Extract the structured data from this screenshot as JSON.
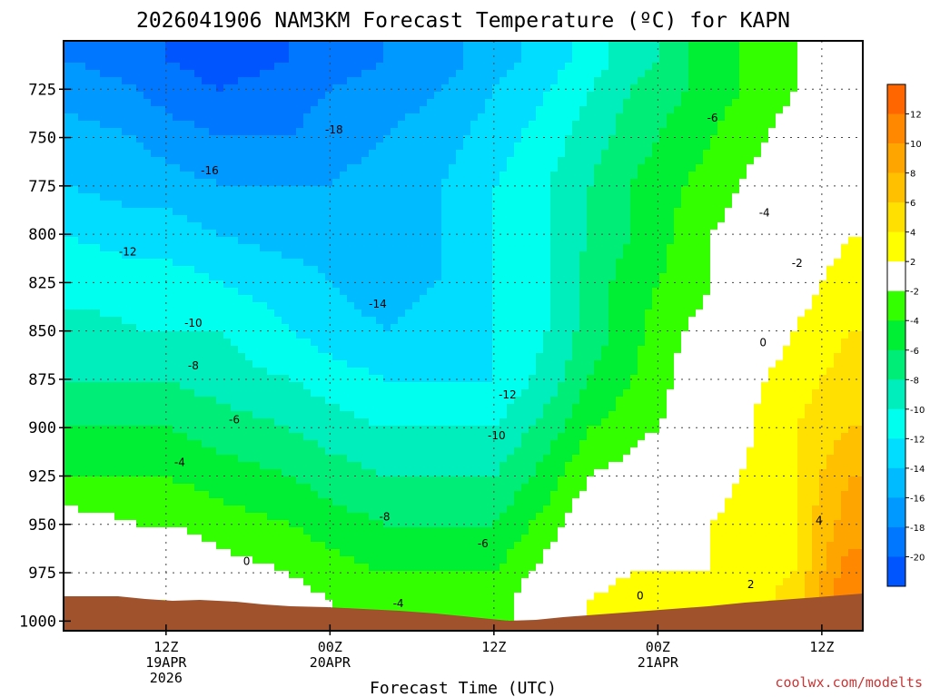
{
  "chart_data": {
    "type": "heatmap",
    "title": "2026041906 NAM3KM Forecast Temperature (ºC) for KAPN",
    "xlabel": "Forecast Time (UTC)",
    "ylabel": "",
    "credit": "coolwx.com/modelts",
    "x_range_hours": [
      -7.5,
      51
    ],
    "y_range_hpa": [
      700,
      1005
    ],
    "y_scale": "linear-inverted",
    "grid": true,
    "x_ticks": [
      {
        "hour": 0,
        "lines": [
          "12Z",
          "19APR",
          "2026"
        ]
      },
      {
        "hour": 12,
        "lines": [
          "00Z",
          "20APR"
        ]
      },
      {
        "hour": 24,
        "lines": [
          "12Z"
        ]
      },
      {
        "hour": 36,
        "lines": [
          "00Z",
          "21APR"
        ]
      },
      {
        "hour": 48,
        "lines": [
          "12Z"
        ]
      }
    ],
    "y_ticks": [
      725,
      750,
      775,
      800,
      825,
      850,
      875,
      900,
      925,
      950,
      975,
      1000
    ],
    "colorbar": {
      "position": "right",
      "labels": [
        "12",
        "10",
        "8",
        "6",
        "4",
        "2",
        "-2",
        "-4",
        "-6",
        "-8",
        "-10",
        "-12",
        "-14",
        "-16",
        "-18",
        "-20"
      ],
      "colors": [
        "#ff6600",
        "#ff8800",
        "#ffa500",
        "#ffc000",
        "#ffe000",
        "#ffff00",
        "#ffffff",
        "#33ff00",
        "#00ee33",
        "#00ee77",
        "#00eebb",
        "#00ffee",
        "#00ddff",
        "#00bbff",
        "#0099ff",
        "#0077ff",
        "#0055ff"
      ]
    },
    "temperature_profiles": {
      "hours": [
        -7,
        -2,
        0,
        4,
        9,
        12,
        16,
        20,
        24,
        28,
        31,
        34,
        36,
        38,
        40,
        42,
        44,
        46,
        48,
        50
      ],
      "pressures": [
        710,
        725,
        750,
        775,
        800,
        825,
        850,
        875,
        900,
        925,
        950,
        975,
        990
      ],
      "values_c": [
        [
          -18,
          -19,
          -20,
          -21,
          -20,
          -19,
          -18,
          -17,
          -15,
          -13,
          -11,
          -9,
          -8,
          -6,
          -5,
          -4,
          -3,
          -2,
          -1,
          -1
        ],
        [
          -17,
          -18,
          -19,
          -20,
          -19,
          -18,
          -17,
          -16,
          -14,
          -12,
          -10,
          -8,
          -7,
          -6,
          -5,
          -4,
          -3,
          -2,
          -1,
          -1
        ],
        [
          -15,
          -16,
          -17,
          -18,
          -18,
          -17,
          -16,
          -15,
          -13,
          -11,
          -9,
          -7,
          -6,
          -5,
          -4,
          -3,
          -2,
          -1,
          -1,
          0
        ],
        [
          -14,
          -15,
          -15,
          -16,
          -16,
          -16,
          -15,
          -14,
          -12,
          -10,
          -8,
          -6,
          -5,
          -4,
          -3,
          -2,
          -1,
          0,
          0,
          1
        ],
        [
          -12,
          -13,
          -13,
          -14,
          -15,
          -15,
          -15,
          -14,
          -12,
          -10,
          -8,
          -6,
          -5,
          -3,
          -2,
          -1,
          0,
          1,
          1,
          2
        ],
        [
          -11,
          -11,
          -11,
          -12,
          -13,
          -14,
          -15,
          -14,
          -12,
          -10,
          -7,
          -5,
          -4,
          -3,
          -2,
          -1,
          0,
          1,
          2,
          3
        ],
        [
          -9,
          -10,
          -10,
          -10,
          -12,
          -13,
          -14,
          -13,
          -12,
          -10,
          -7,
          -5,
          -3,
          -2,
          -1,
          0,
          1,
          2,
          3,
          4
        ],
        [
          -8,
          -8,
          -8,
          -9,
          -10,
          -11,
          -12,
          -12,
          -12,
          -9,
          -6,
          -4,
          -3,
          -1,
          0,
          1,
          2,
          3,
          4,
          5
        ],
        [
          -6,
          -6,
          -6,
          -7,
          -8,
          -9,
          -10,
          -10,
          -10,
          -7,
          -4,
          -3,
          -2,
          -1,
          0,
          1,
          3,
          4,
          5,
          6
        ],
        [
          -4,
          -4,
          -4,
          -5,
          -6,
          -7,
          -8,
          -8,
          -8,
          -5,
          -2,
          -1,
          0,
          0,
          1,
          2,
          3,
          4,
          6,
          8
        ],
        [
          -1,
          -2,
          -2,
          -3,
          -4,
          -5,
          -6,
          -6,
          -6,
          -3,
          0,
          1,
          1,
          1,
          2,
          3,
          3,
          4,
          7,
          9
        ],
        [
          0,
          1,
          1,
          -1,
          -2,
          -3,
          -4,
          -4,
          -4,
          -1,
          1,
          2,
          2,
          2,
          2,
          2,
          3,
          4,
          8,
          11
        ],
        [
          1,
          2,
          2,
          0,
          -1,
          -2,
          -3,
          -3,
          -3,
          0,
          2,
          3,
          3,
          3,
          3,
          3,
          4,
          5,
          9,
          12
        ]
      ]
    },
    "contour_labels": [
      {
        "text": "-18",
        "hour": 12.3,
        "hpa": 746
      },
      {
        "text": "-16",
        "hour": 3.2,
        "hpa": 767
      },
      {
        "text": "-12",
        "hour": -2.8,
        "hpa": 809
      },
      {
        "text": "-14",
        "hour": 15.5,
        "hpa": 836
      },
      {
        "text": "-10",
        "hour": 2.0,
        "hpa": 846
      },
      {
        "text": "-8",
        "hour": 2.0,
        "hpa": 868
      },
      {
        "text": "-6",
        "hour": 5.0,
        "hpa": 896
      },
      {
        "text": "-4",
        "hour": 1.0,
        "hpa": 918
      },
      {
        "text": "0",
        "hour": 5.9,
        "hpa": 969
      },
      {
        "text": "-8",
        "hour": 16.0,
        "hpa": 946
      },
      {
        "text": "-6",
        "hour": 23.2,
        "hpa": 960
      },
      {
        "text": "-4",
        "hour": 17.0,
        "hpa": 991
      },
      {
        "text": "-10",
        "hour": 24.2,
        "hpa": 904
      },
      {
        "text": "-12",
        "hour": 25.0,
        "hpa": 883
      },
      {
        "text": "0",
        "hour": 34.7,
        "hpa": 987
      },
      {
        "text": "-6",
        "hour": 40.0,
        "hpa": 740
      },
      {
        "text": "-4",
        "hour": 43.8,
        "hpa": 789
      },
      {
        "text": "-2",
        "hour": 46.2,
        "hpa": 815
      },
      {
        "text": "0",
        "hour": 43.7,
        "hpa": 856
      },
      {
        "text": "4",
        "hour": 47.8,
        "hpa": 948
      },
      {
        "text": "2",
        "hour": 42.8,
        "hpa": 981
      }
    ]
  }
}
